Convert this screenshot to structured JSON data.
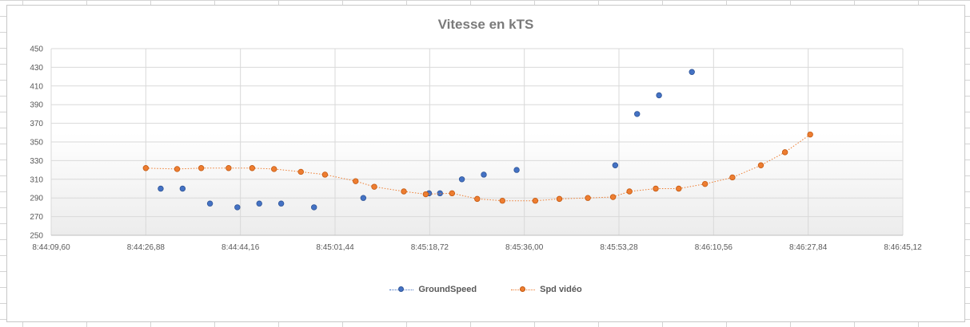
{
  "chart_data": {
    "type": "scatter",
    "title": "Vitesse en kTS",
    "xlabel": "",
    "ylabel": "",
    "x_range": [
      "8:44:09,60",
      "8:46:45,12"
    ],
    "x_ticks": [
      "8:44:09,60",
      "8:44:26,88",
      "8:44:44,16",
      "8:45:01,44",
      "8:45:18,72",
      "8:45:36,00",
      "8:45:53,28",
      "8:46:10,56",
      "8:46:27,84",
      "8:46:45,12"
    ],
    "y_range": [
      250,
      450
    ],
    "y_ticks": [
      250,
      270,
      290,
      310,
      330,
      350,
      370,
      390,
      410,
      430,
      450
    ],
    "grid": true,
    "legend_position": "bottom",
    "series": [
      {
        "name": "GroundSpeed",
        "color": "#4472c4",
        "line": "none",
        "points": [
          [
            "8:44:29,60",
            300
          ],
          [
            "8:44:33,60",
            300
          ],
          [
            "8:44:38,60",
            284
          ],
          [
            "8:44:43,60",
            280
          ],
          [
            "8:44:47,60",
            284
          ],
          [
            "8:44:51,60",
            284
          ],
          [
            "8:44:57,60",
            280
          ],
          [
            "8:45:06,60",
            290
          ],
          [
            "8:45:18,60",
            295
          ],
          [
            "8:45:20,60",
            295
          ],
          [
            "8:45:24,60",
            310
          ],
          [
            "8:45:28,60",
            315
          ],
          [
            "8:45:34,60",
            320
          ],
          [
            "8:45:52,60",
            325
          ],
          [
            "8:45:56,60",
            380
          ],
          [
            "8:46:00,60",
            400
          ],
          [
            "8:46:06,60",
            425
          ]
        ]
      },
      {
        "name": "Spd vidéo",
        "color": "#ed7d31",
        "line": "dotted",
        "points": [
          [
            "8:44:26,88",
            322
          ],
          [
            "8:44:32,60",
            321
          ],
          [
            "8:44:37,00",
            322
          ],
          [
            "8:44:42,00",
            322
          ],
          [
            "8:44:46,30",
            322
          ],
          [
            "8:44:50,30",
            321
          ],
          [
            "8:44:55,20",
            318
          ],
          [
            "8:44:59,60",
            315
          ],
          [
            "8:45:05,20",
            308
          ],
          [
            "8:45:08,60",
            302
          ],
          [
            "8:45:14,00",
            297
          ],
          [
            "8:45:18,00",
            294
          ],
          [
            "8:45:22,80",
            295
          ],
          [
            "8:45:27,40",
            289
          ],
          [
            "8:45:32,00",
            287
          ],
          [
            "8:45:38,00",
            287
          ],
          [
            "8:45:42,40",
            289
          ],
          [
            "8:45:47,60",
            290
          ],
          [
            "8:45:52,20",
            291
          ],
          [
            "8:45:55,20",
            297
          ],
          [
            "8:46:00,00",
            300
          ],
          [
            "8:46:04,20",
            300
          ],
          [
            "8:46:09,00",
            305
          ],
          [
            "8:46:14,00",
            312
          ],
          [
            "8:46:19,20",
            325
          ],
          [
            "8:46:23,60",
            339
          ],
          [
            "8:46:28,20",
            358
          ]
        ]
      }
    ]
  }
}
